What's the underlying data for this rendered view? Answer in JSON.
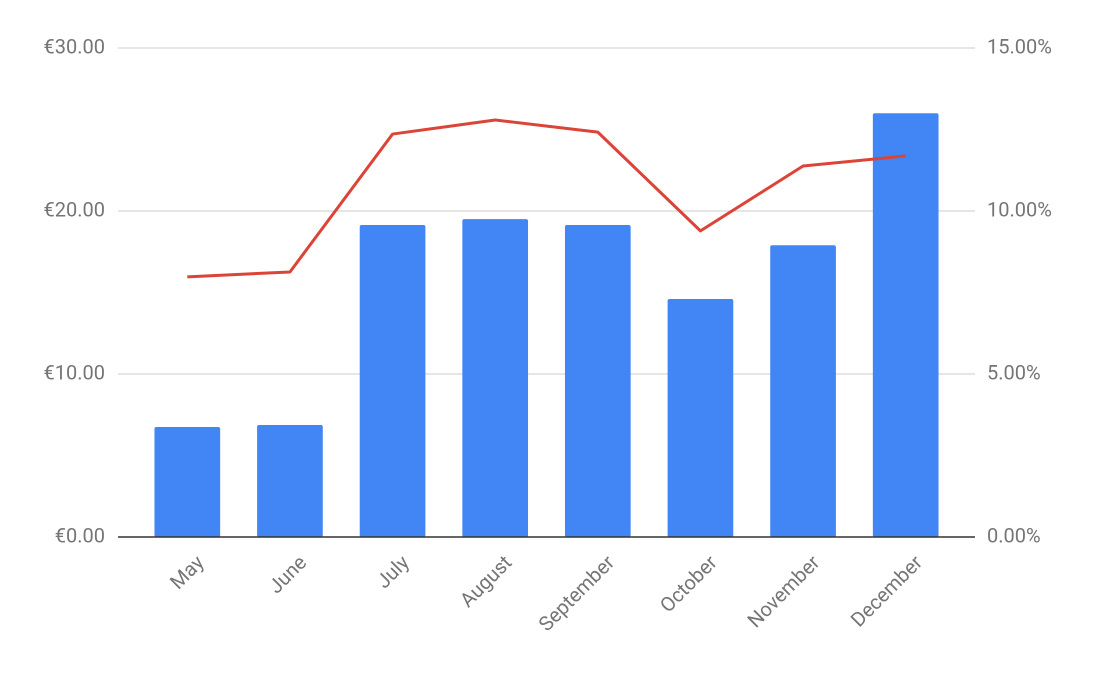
{
  "chart_data": {
    "type": "combo",
    "categories": [
      "May",
      "June",
      "July",
      "August",
      "September",
      "October",
      "November",
      "December"
    ],
    "series": [
      {
        "type": "bar",
        "color": "#4285f4",
        "axis": "y",
        "values": [
          6.75,
          6.87,
          19.14,
          19.5,
          19.14,
          14.6,
          17.9,
          26.0
        ]
      },
      {
        "type": "line",
        "color": "#db4437",
        "axis": "y2",
        "values": [
          7.98,
          8.13,
          12.36,
          12.79,
          12.42,
          9.39,
          11.38,
          11.69
        ]
      }
    ],
    "ylim": [
      0,
      30
    ],
    "yticks": [
      {
        "value": 0,
        "label": "€0.00"
      },
      {
        "value": 10,
        "label": "€10.00"
      },
      {
        "value": 20,
        "label": "€20.00"
      },
      {
        "value": 30,
        "label": "€30.00"
      }
    ],
    "y2lim": [
      0,
      15
    ],
    "y2ticks": [
      {
        "value": 0,
        "label": "0.00%"
      },
      {
        "value": 5,
        "label": "5.00%"
      },
      {
        "value": 10,
        "label": "10.00%"
      },
      {
        "value": 15,
        "label": "15.00%"
      }
    ],
    "grid": true
  }
}
